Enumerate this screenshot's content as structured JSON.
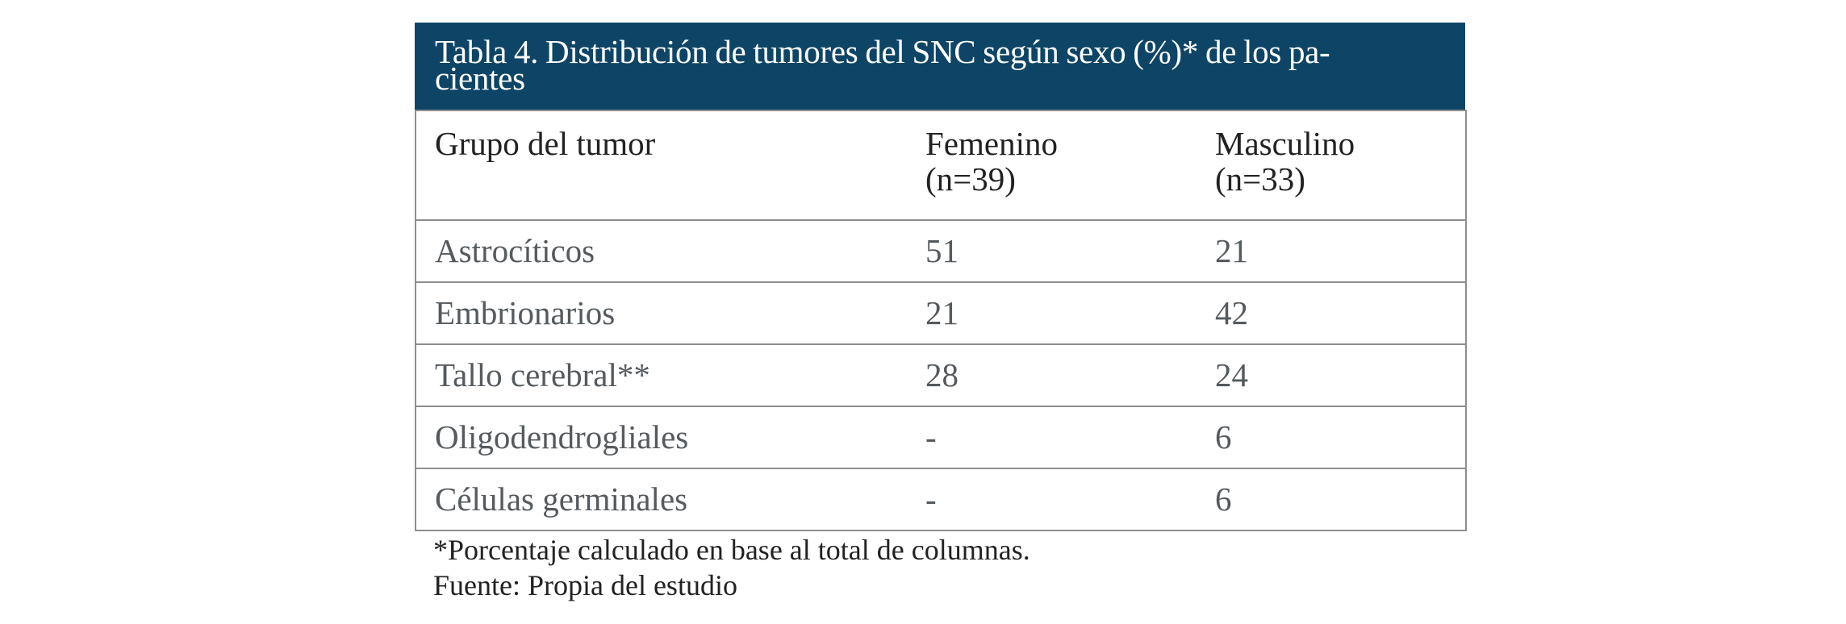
{
  "table": {
    "caption": "Tabla 4. Distribución de tumores del SNC según sexo (%)* de los pacientes",
    "caption_line1": "Tabla 4. Distribución de tumores del SNC según sexo (%)* de los pa-",
    "caption_line2": "cientes",
    "header": {
      "group": "Grupo del tumor",
      "female": "Femenino",
      "female_n": "(n=39)",
      "male": "Masculino",
      "male_n": "(n=33)"
    },
    "rows": [
      {
        "group": "Astrocíticos",
        "female": "51",
        "male": "21"
      },
      {
        "group": "Embrionarios",
        "female": "21",
        "male": "42"
      },
      {
        "group": "Tallo cerebral**",
        "female": "28",
        "male": "24"
      },
      {
        "group": "Oligodendrogliales",
        "female": "-",
        "male": "6"
      },
      {
        "group": "Células germinales",
        "female": "-",
        "male": "6"
      }
    ],
    "colors": {
      "caption_bg": "#0e4566",
      "border": "#8e8e8e",
      "body_text": "#555a5e"
    }
  },
  "footnotes": {
    "percent_note": "*Porcentaje calculado en base al total de columnas.",
    "source": "Fuente: Propia del estudio"
  }
}
